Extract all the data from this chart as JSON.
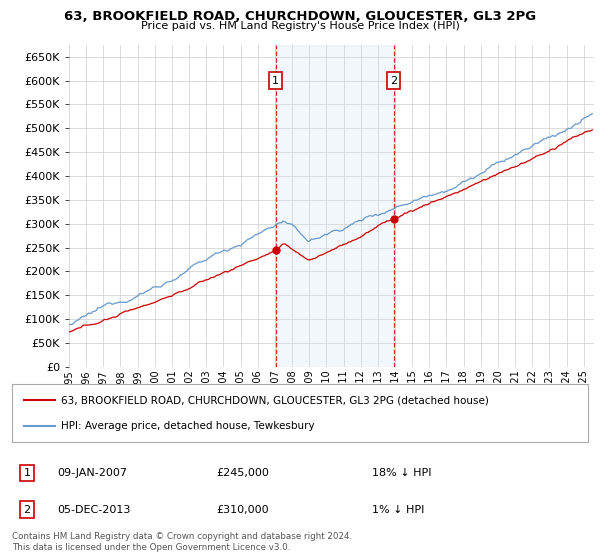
{
  "title": "63, BROOKFIELD ROAD, CHURCHDOWN, GLOUCESTER, GL3 2PG",
  "subtitle": "Price paid vs. HM Land Registry's House Price Index (HPI)",
  "legend_line1": "63, BROOKFIELD ROAD, CHURCHDOWN, GLOUCESTER, GL3 2PG (detached house)",
  "legend_line2": "HPI: Average price, detached house, Tewkesbury",
  "annotation1_label": "1",
  "annotation1_date": "09-JAN-2007",
  "annotation1_price": "£245,000",
  "annotation1_hpi": "18% ↓ HPI",
  "annotation2_label": "2",
  "annotation2_date": "05-DEC-2013",
  "annotation2_price": "£310,000",
  "annotation2_hpi": "1% ↓ HPI",
  "footer": "Contains HM Land Registry data © Crown copyright and database right 2024.\nThis data is licensed under the Open Government Licence v3.0.",
  "ylim": [
    0,
    675000
  ],
  "yticks": [
    0,
    50000,
    100000,
    150000,
    200000,
    250000,
    300000,
    350000,
    400000,
    450000,
    500000,
    550000,
    600000,
    650000
  ],
  "transaction1_year": 2007.04,
  "transaction1_price": 245000,
  "transaction2_year": 2013.92,
  "transaction2_price": 310000,
  "hpi_color": "#6699cc",
  "price_color": "#cc0000",
  "shade_color": "#cce0f0",
  "grid_color": "#cccccc",
  "background_color": "#ffffff"
}
